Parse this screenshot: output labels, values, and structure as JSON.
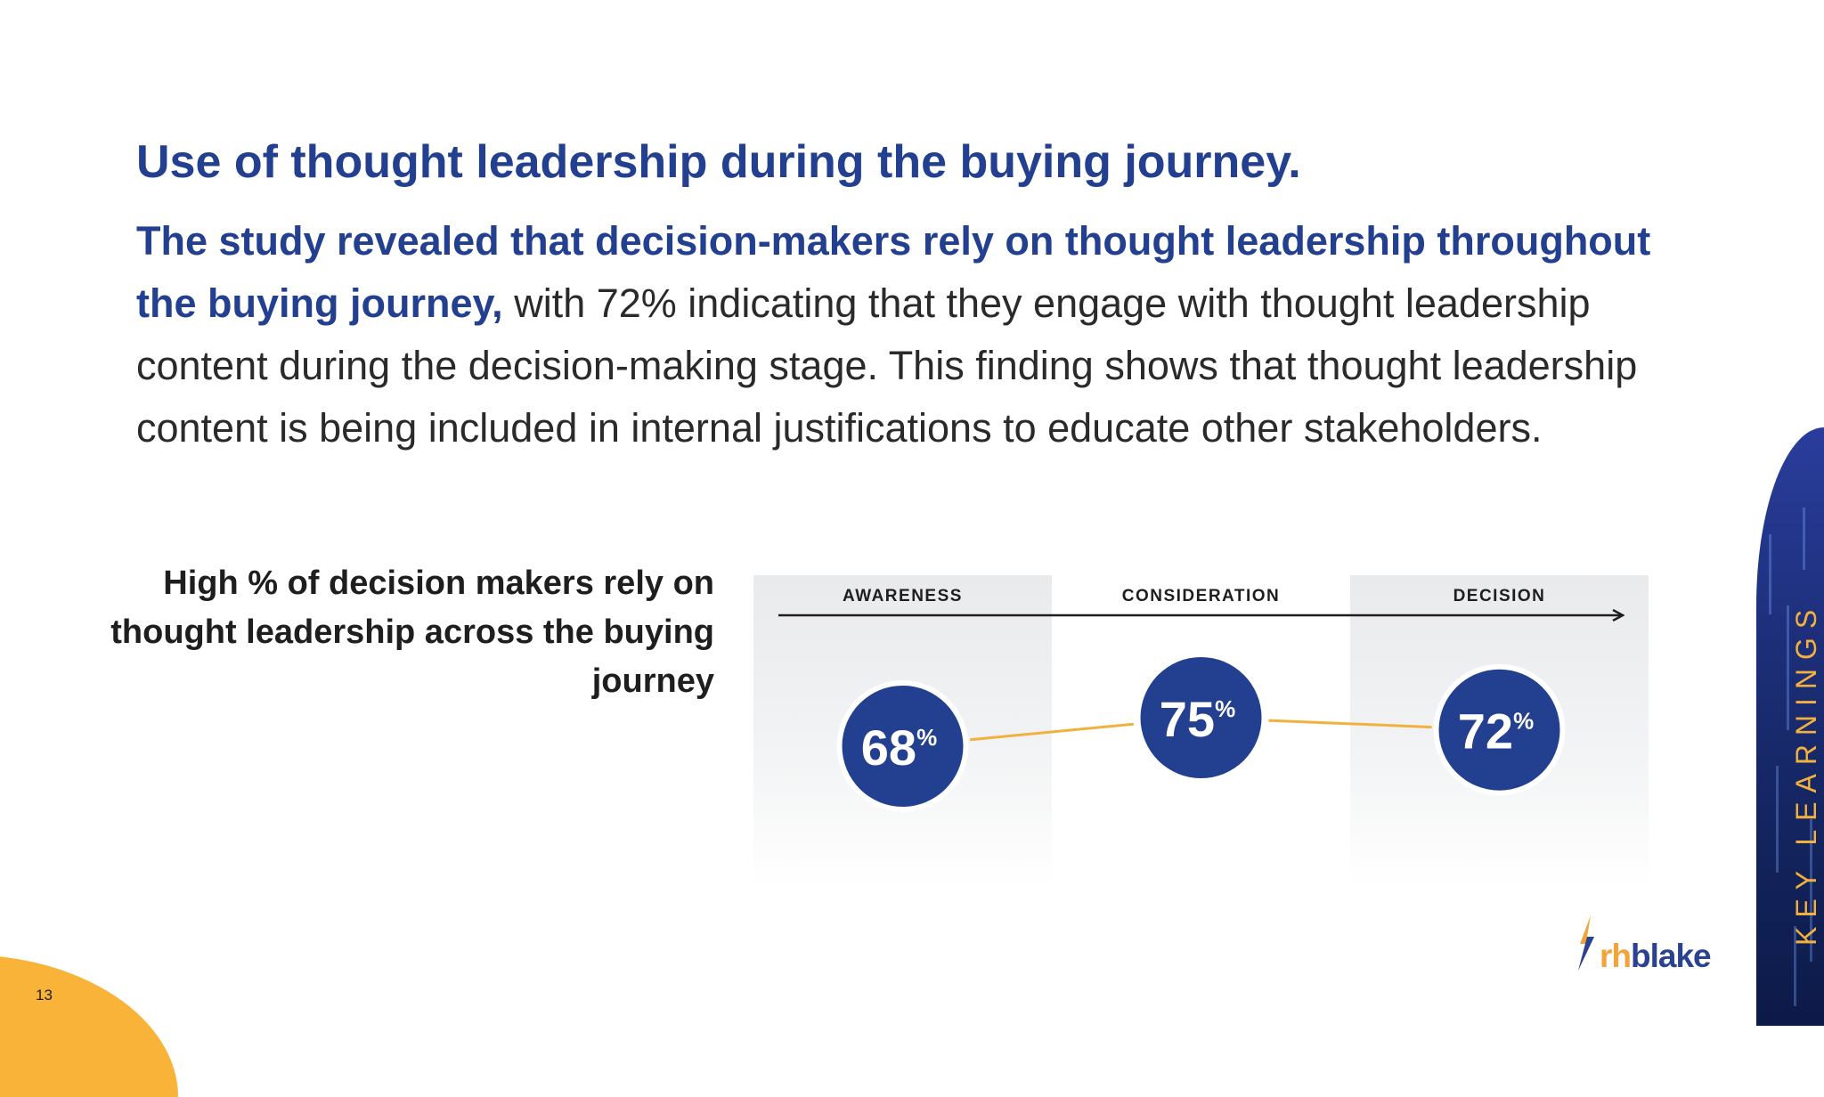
{
  "page": {
    "title": "Use of thought leadership during the buying journey.",
    "lead_text": "The study revealed that decision-makers rely on thought leadership throughout the buying journey,",
    "body_text": " with 72% indicating that they engage with thought leadership content during the decision-making stage. This finding shows that thought leadership content is being included in internal justifications to educate other stakeholders.",
    "page_number": "13",
    "side_label": "KEY LEARNINGS",
    "logo": {
      "part1": "rh",
      "part2": "blake"
    }
  },
  "chart_data": {
    "type": "line",
    "title": "High % of decision makers rely on thought leadership across the buying journey",
    "categories": [
      "AWARENESS",
      "CONSIDERATION",
      "DECISION"
    ],
    "series": [
      {
        "values": [
          68,
          75,
          72
        ]
      }
    ],
    "value_suffix": "%",
    "highlighted_columns": [
      "AWARENESS",
      "DECISION"
    ],
    "colors": {
      "circle": "#233f8f",
      "line": "#f2b13d",
      "column_fill": "#ebecee",
      "arrow": "#1e1e1e"
    }
  }
}
